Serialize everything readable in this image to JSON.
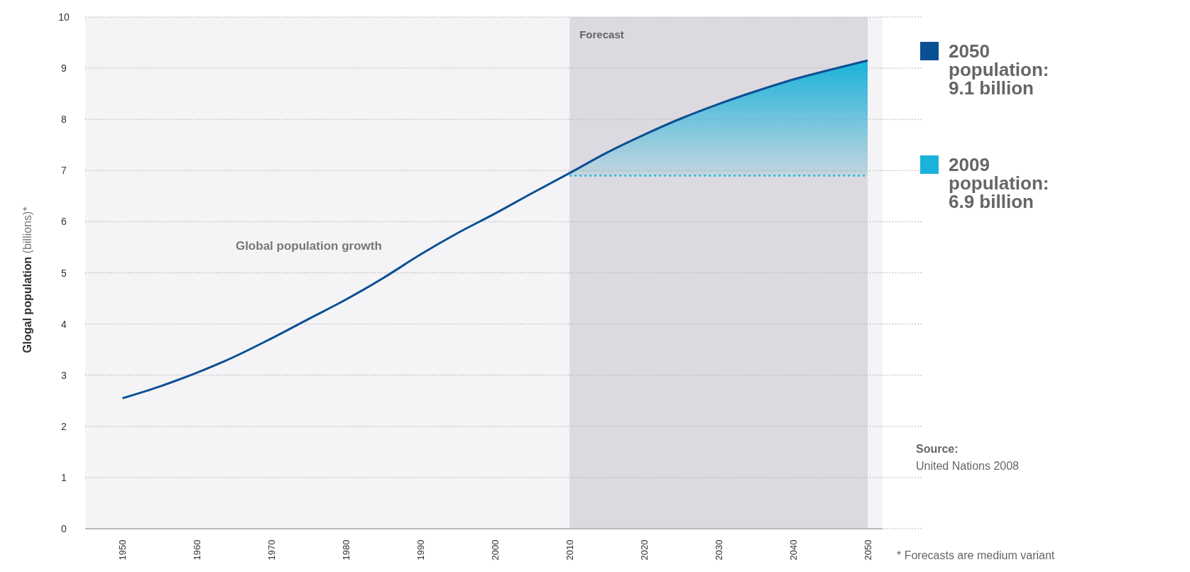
{
  "chart_data": {
    "type": "line",
    "ylabel": "Glogal population (billions)*",
    "x": [
      1950,
      1955,
      1960,
      1965,
      1970,
      1975,
      1980,
      1985,
      1990,
      1995,
      2000,
      2005,
      2010,
      2015,
      2020,
      2025,
      2030,
      2035,
      2040,
      2045,
      2050
    ],
    "series": [
      {
        "name": "2050 population: 9.1 billion",
        "color": "#0b4f94",
        "values": [
          2.55,
          2.78,
          3.05,
          3.36,
          3.72,
          4.1,
          4.48,
          4.9,
          5.36,
          5.78,
          6.16,
          6.56,
          6.95,
          7.35,
          7.7,
          8.02,
          8.3,
          8.55,
          8.78,
          8.97,
          9.15
        ]
      },
      {
        "type": "area",
        "name": "2009 population: 6.9 billion",
        "color": "#1ab2da",
        "x": [
          2010,
          2015,
          2020,
          2025,
          2030,
          2035,
          2040,
          2045,
          2050
        ],
        "values": [
          6.95,
          7.35,
          7.7,
          8.02,
          8.3,
          8.55,
          8.78,
          8.97,
          9.15
        ]
      }
    ],
    "xlim": [
      1945,
      2052
    ],
    "xticks": [
      1950,
      1960,
      1970,
      1980,
      1990,
      2000,
      2010,
      2020,
      2030,
      2040,
      2050
    ],
    "ylim": [
      0,
      10
    ],
    "yticks": [
      0,
      1,
      2,
      3,
      4,
      5,
      6,
      7,
      8,
      9,
      10
    ],
    "grid": "y",
    "legend": "right",
    "ref_lines": [
      {
        "axis": "y",
        "value": 6.9,
        "color": "#1ab8dd",
        "line_style": "dotted"
      }
    ],
    "bands": [
      {
        "axis": "x",
        "from": 2010,
        "to": 2050,
        "label": "Forecast",
        "color": "#dcdae0"
      }
    ],
    "annotations": [
      "Global population growth",
      "Source:",
      "United Nations 2008",
      "* Forecasts are medium variant"
    ]
  }
}
